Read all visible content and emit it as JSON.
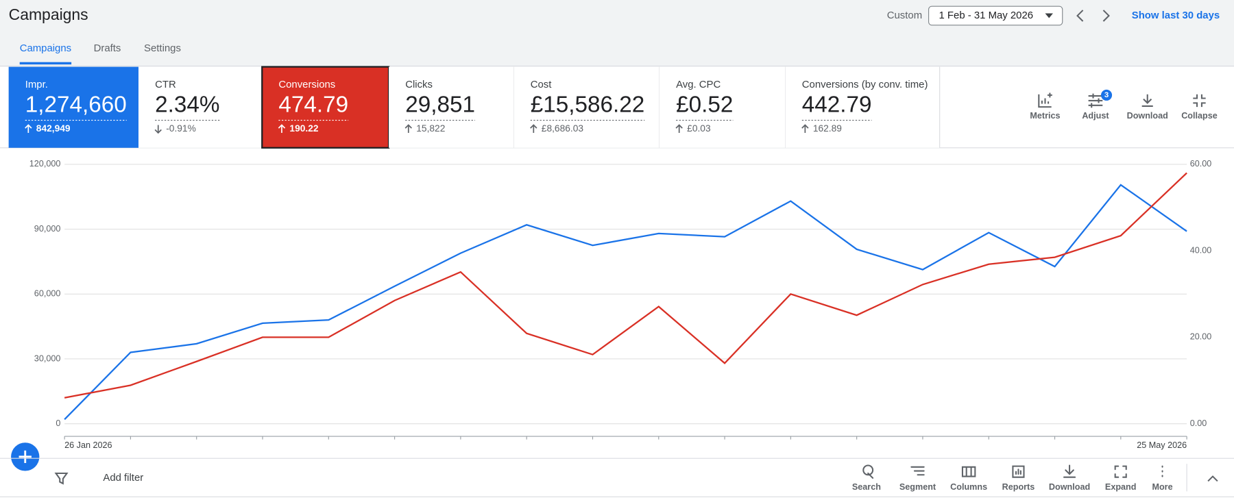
{
  "header": {
    "title": "Campaigns",
    "date_label": "Custom",
    "date_range": "1 Feb - 31 May 2026",
    "show_last": "Show last 30 days"
  },
  "tabs": [
    "Campaigns",
    "Drafts",
    "Settings"
  ],
  "metrics": [
    {
      "label": "Impr.",
      "value": "1,274,660",
      "change": "842,949",
      "direction": "up",
      "color": "#1a73e8"
    },
    {
      "label": "CTR",
      "value": "2.34%",
      "change": "-0.91%",
      "direction": "down"
    },
    {
      "label": "Conversions",
      "value": "474.79",
      "change": "190.22",
      "direction": "up",
      "color": "#d93025"
    },
    {
      "label": "Clicks",
      "value": "29,851",
      "change": "15,822",
      "direction": "up"
    },
    {
      "label": "Cost",
      "value": "£15,586.22",
      "change": "£8,686.03",
      "direction": "up"
    },
    {
      "label": "Avg. CPC",
      "value": "£0.52",
      "change": "£0.03",
      "direction": "up"
    },
    {
      "label": "Conversions (by conv. time)",
      "value": "442.79",
      "change": "162.89",
      "direction": "up"
    }
  ],
  "actions": [
    {
      "label": "Metrics"
    },
    {
      "label": "Adjust",
      "badge": "3"
    },
    {
      "label": "Download"
    },
    {
      "label": "Collapse"
    }
  ],
  "chart_data": {
    "type": "line",
    "categories": [
      "26 Jan 2026",
      null,
      null,
      null,
      null,
      null,
      null,
      null,
      null,
      null,
      null,
      null,
      null,
      null,
      null,
      null,
      null,
      "25 May 2026"
    ],
    "series": [
      {
        "color": "#1a73e8",
        "values": [
          2000,
          33000,
          37000,
          46500,
          48000,
          63600,
          78900,
          92000,
          82500,
          88000,
          86500,
          103000,
          80700,
          71300,
          88400,
          72700,
          110500,
          89000
        ]
      },
      {
        "color": "#d93025",
        "axis": "y2",
        "values": [
          6,
          8.9,
          14.4,
          20,
          20,
          28.5,
          35.1,
          20.9,
          16,
          27.1,
          14,
          30,
          25.1,
          32.2,
          36.9,
          38.5,
          43.5,
          58
        ]
      }
    ],
    "ylim": [
      0,
      120000
    ],
    "yticks": [
      0,
      {
        "value": 30000,
        "label": "30,000"
      },
      {
        "value": 60000,
        "label": "60,000"
      },
      {
        "value": 90000,
        "label": "90,000"
      },
      {
        "value": 120000,
        "label": "120,000"
      }
    ],
    "y2lim": [
      0,
      60
    ],
    "y2ticks": [
      {
        "value": 0,
        "label": "0.00"
      },
      {
        "value": 20,
        "label": "20.00"
      },
      {
        "value": 40,
        "label": "40.00"
      },
      {
        "value": 60,
        "label": "60.00"
      }
    ],
    "grid": true
  },
  "toolbar": {
    "add_filter": "Add filter",
    "tools": [
      "Search",
      "Segment",
      "Columns",
      "Reports",
      "Download",
      "Expand",
      "More"
    ]
  }
}
